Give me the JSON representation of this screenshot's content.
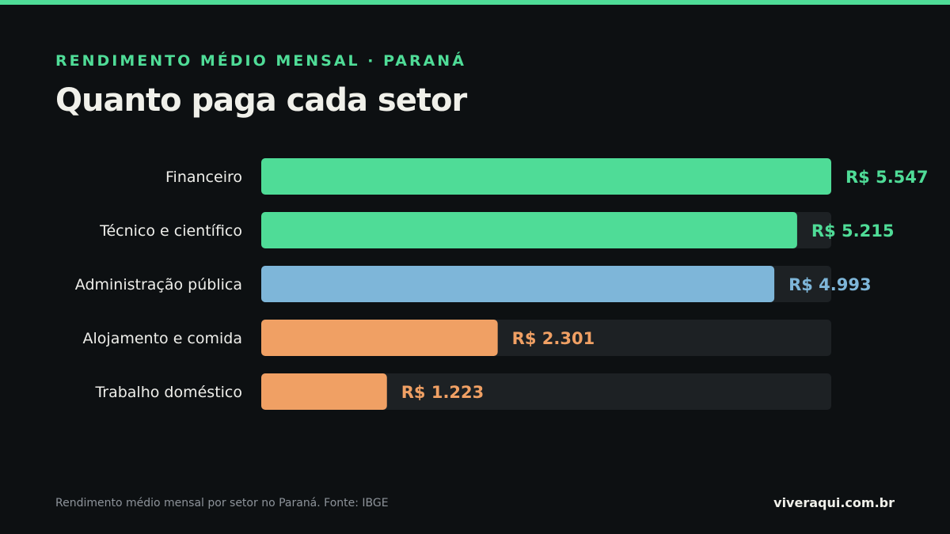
{
  "header": {
    "eyebrow": "RENDIMENTO MÉDIO MENSAL · PARANÁ",
    "title": "Quanto paga cada setor"
  },
  "colors": {
    "accent": "#4fdc97",
    "high": "#4fdc97",
    "mid": "#7eb6d9",
    "low": "#f0a064",
    "track": "#1d2124",
    "background": "#0d1012"
  },
  "chart_data": {
    "type": "bar",
    "orientation": "horizontal",
    "categories": [
      "Financeiro",
      "Técnico e científico",
      "Administração pública",
      "Alojamento e comida",
      "Trabalho doméstico"
    ],
    "values": [
      5547,
      5215,
      4993,
      2301,
      1223
    ],
    "value_labels": [
      "R$ 5.547",
      "R$ 5.215",
      "R$ 4.993",
      "R$ 2.301",
      "R$ 1.223"
    ],
    "bar_colors": [
      "#4fdc97",
      "#4fdc97",
      "#7eb6d9",
      "#f0a064",
      "#f0a064"
    ],
    "xlim": [
      0,
      5547
    ],
    "title": "Quanto paga cada setor",
    "grid": false,
    "legend": "none"
  },
  "footer": {
    "note": "Rendimento médio mensal por setor no Paraná. Fonte: IBGE",
    "brand": "viveraqui.com.br"
  }
}
